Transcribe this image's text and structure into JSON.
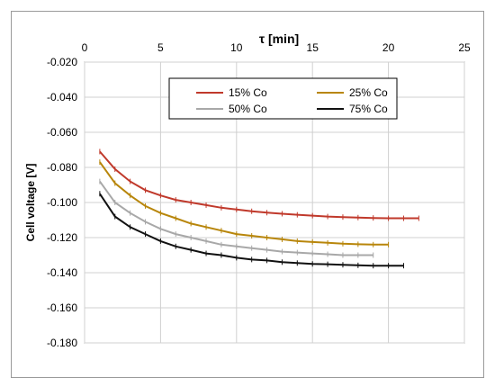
{
  "chart_data": {
    "type": "line",
    "title": "",
    "xlabel": "τ [min]",
    "ylabel": "Cell voltage [V]",
    "xlim": [
      0,
      25
    ],
    "ylim": [
      -0.18,
      -0.02
    ],
    "x_ticks": [
      "0",
      "5",
      "10",
      "15",
      "20",
      "25"
    ],
    "y_ticks": [
      "-0.020",
      "-0.040",
      "-0.060",
      "-0.080",
      "-0.100",
      "-0.120",
      "-0.140",
      "-0.160",
      "-0.180"
    ],
    "grid": true,
    "x_axis_position": "top",
    "legend_placement": "top-center",
    "series": [
      {
        "name": "15% Co",
        "color": "#c0392b",
        "x": [
          1,
          2,
          3,
          4,
          5,
          6,
          7,
          8,
          9,
          10,
          11,
          12,
          13,
          14,
          15,
          16,
          17,
          18,
          19,
          20,
          21,
          22
        ],
        "y": [
          -0.071,
          -0.081,
          -0.088,
          -0.093,
          -0.096,
          -0.0985,
          -0.1,
          -0.1015,
          -0.103,
          -0.104,
          -0.105,
          -0.1058,
          -0.1064,
          -0.107,
          -0.1075,
          -0.108,
          -0.1083,
          -0.1086,
          -0.1088,
          -0.109,
          -0.109,
          -0.109
        ]
      },
      {
        "name": "25% Co",
        "color": "#b8860b",
        "x": [
          1,
          2,
          3,
          4,
          5,
          6,
          7,
          8,
          9,
          10,
          11,
          12,
          13,
          14,
          15,
          16,
          17,
          18,
          19,
          20
        ],
        "y": [
          -0.077,
          -0.089,
          -0.096,
          -0.102,
          -0.106,
          -0.109,
          -0.112,
          -0.114,
          -0.116,
          -0.118,
          -0.119,
          -0.12,
          -0.121,
          -0.122,
          -0.1225,
          -0.123,
          -0.1235,
          -0.1238,
          -0.124,
          -0.124
        ]
      },
      {
        "name": "50% Co",
        "color": "#a8a8a8",
        "x": [
          1,
          2,
          3,
          4,
          5,
          6,
          7,
          8,
          9,
          10,
          11,
          12,
          13,
          14,
          15,
          16,
          17,
          18,
          19
        ],
        "y": [
          -0.088,
          -0.1,
          -0.106,
          -0.111,
          -0.115,
          -0.118,
          -0.12,
          -0.122,
          -0.124,
          -0.125,
          -0.126,
          -0.127,
          -0.128,
          -0.1285,
          -0.129,
          -0.1295,
          -0.13,
          -0.13,
          -0.13
        ]
      },
      {
        "name": "75% Co",
        "color": "#111111",
        "x": [
          1,
          2,
          3,
          4,
          5,
          6,
          7,
          8,
          9,
          10,
          11,
          12,
          13,
          14,
          15,
          16,
          17,
          18,
          19,
          20,
          21
        ],
        "y": [
          -0.095,
          -0.108,
          -0.114,
          -0.118,
          -0.122,
          -0.125,
          -0.127,
          -0.129,
          -0.13,
          -0.1315,
          -0.1325,
          -0.133,
          -0.134,
          -0.1345,
          -0.135,
          -0.1352,
          -0.1355,
          -0.1358,
          -0.136,
          -0.136,
          -0.136
        ]
      }
    ]
  }
}
